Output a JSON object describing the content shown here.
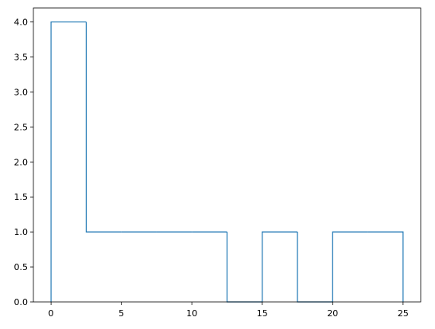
{
  "chart_data": {
    "type": "histogram-step",
    "bin_edges": [
      0,
      2.5,
      5,
      7.5,
      10,
      12.5,
      15,
      17.5,
      20,
      22.5,
      25
    ],
    "counts": [
      4,
      1,
      1,
      1,
      1,
      0,
      1,
      0,
      1,
      1
    ],
    "xlim": [
      -1.25,
      26.25
    ],
    "ylim": [
      0,
      4.2
    ],
    "xticks": [
      0,
      5,
      10,
      15,
      20,
      25
    ],
    "yticks": [
      0.0,
      0.5,
      1.0,
      1.5,
      2.0,
      2.5,
      3.0,
      3.5,
      4.0
    ],
    "xtick_labels": [
      "0",
      "5",
      "10",
      "15",
      "20",
      "25"
    ],
    "ytick_labels": [
      "0.0",
      "0.5",
      "1.0",
      "1.5",
      "2.0",
      "2.5",
      "3.0",
      "3.5",
      "4.0"
    ],
    "title": "",
    "xlabel": "",
    "ylabel": "",
    "grid": false,
    "colors": {
      "line": "#1f77b4",
      "axes": "#000000",
      "background": "#ffffff"
    }
  }
}
